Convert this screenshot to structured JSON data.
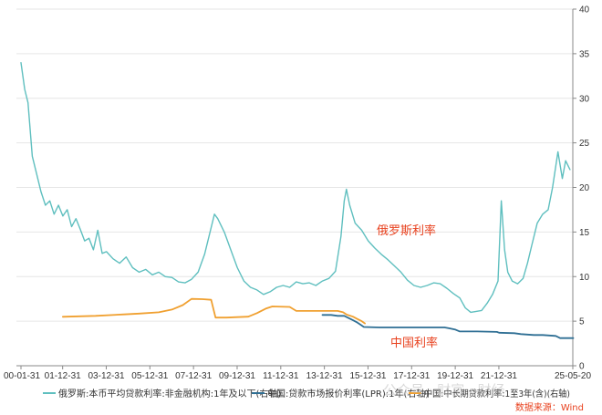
{
  "chart_data": {
    "type": "line",
    "y_axis_side": "right",
    "ylim": [
      0,
      40
    ],
    "y_ticks": [
      "0",
      "5",
      "10",
      "15",
      "20",
      "25",
      "30",
      "35",
      "40"
    ],
    "x_ticks": [
      "00-01-31",
      "01-12-31",
      "03-12-31",
      "05-12-31",
      "07-12-31",
      "09-12-31",
      "11-12-31",
      "13-12-31",
      "15-12-31",
      "17-12-31",
      "19-12-31",
      "21-12-31",
      "25-05-20"
    ],
    "legend_position": "bottom",
    "series": [
      {
        "name": "俄罗斯:本币平均贷款利率:非金融机构:1年及以下(右轴)",
        "color": "#5fbfbf",
        "annotation": "俄罗斯利率",
        "points": [
          [
            2000.08,
            34.0
          ],
          [
            2000.25,
            31.0
          ],
          [
            2000.4,
            29.5
          ],
          [
            2000.6,
            23.5
          ],
          [
            2000.8,
            21.5
          ],
          [
            2001.0,
            19.5
          ],
          [
            2001.2,
            18.0
          ],
          [
            2001.4,
            18.5
          ],
          [
            2001.6,
            17.0
          ],
          [
            2001.8,
            18.0
          ],
          [
            2002.0,
            16.8
          ],
          [
            2002.2,
            17.5
          ],
          [
            2002.4,
            15.6
          ],
          [
            2002.6,
            16.5
          ],
          [
            2002.8,
            15.3
          ],
          [
            2003.0,
            14.0
          ],
          [
            2003.2,
            14.3
          ],
          [
            2003.4,
            13.0
          ],
          [
            2003.6,
            15.2
          ],
          [
            2003.8,
            12.6
          ],
          [
            2004.0,
            12.8
          ],
          [
            2004.3,
            12.0
          ],
          [
            2004.6,
            11.5
          ],
          [
            2004.9,
            12.2
          ],
          [
            2005.2,
            11.0
          ],
          [
            2005.5,
            10.5
          ],
          [
            2005.8,
            10.8
          ],
          [
            2006.1,
            10.2
          ],
          [
            2006.4,
            10.5
          ],
          [
            2006.7,
            10.0
          ],
          [
            2007.0,
            9.9
          ],
          [
            2007.3,
            9.4
          ],
          [
            2007.6,
            9.3
          ],
          [
            2007.9,
            9.7
          ],
          [
            2008.2,
            10.5
          ],
          [
            2008.5,
            12.5
          ],
          [
            2008.8,
            15.5
          ],
          [
            2008.95,
            17.0
          ],
          [
            2009.1,
            16.5
          ],
          [
            2009.4,
            15.0
          ],
          [
            2009.7,
            13.0
          ],
          [
            2010.0,
            11.0
          ],
          [
            2010.3,
            9.5
          ],
          [
            2010.6,
            8.8
          ],
          [
            2010.9,
            8.5
          ],
          [
            2011.2,
            8.0
          ],
          [
            2011.5,
            8.3
          ],
          [
            2011.8,
            8.8
          ],
          [
            2012.1,
            9.0
          ],
          [
            2012.4,
            8.8
          ],
          [
            2012.7,
            9.4
          ],
          [
            2013.0,
            9.2
          ],
          [
            2013.3,
            9.3
          ],
          [
            2013.6,
            9.0
          ],
          [
            2013.9,
            9.5
          ],
          [
            2014.2,
            9.8
          ],
          [
            2014.5,
            10.6
          ],
          [
            2014.75,
            14.5
          ],
          [
            2014.9,
            18.5
          ],
          [
            2015.0,
            19.8
          ],
          [
            2015.15,
            18.0
          ],
          [
            2015.4,
            16.0
          ],
          [
            2015.7,
            15.2
          ],
          [
            2016.0,
            14.0
          ],
          [
            2016.3,
            13.2
          ],
          [
            2016.6,
            12.5
          ],
          [
            2016.9,
            11.9
          ],
          [
            2017.2,
            11.2
          ],
          [
            2017.5,
            10.5
          ],
          [
            2017.8,
            9.6
          ],
          [
            2018.1,
            9.0
          ],
          [
            2018.4,
            8.8
          ],
          [
            2018.7,
            9.0
          ],
          [
            2019.0,
            9.3
          ],
          [
            2019.3,
            9.2
          ],
          [
            2019.6,
            8.7
          ],
          [
            2019.9,
            8.1
          ],
          [
            2020.2,
            7.6
          ],
          [
            2020.45,
            6.5
          ],
          [
            2020.7,
            6.0
          ],
          [
            2020.95,
            6.1
          ],
          [
            2021.2,
            6.2
          ],
          [
            2021.45,
            7.0
          ],
          [
            2021.7,
            8.0
          ],
          [
            2021.95,
            9.5
          ],
          [
            2022.1,
            18.5
          ],
          [
            2022.25,
            13.0
          ],
          [
            2022.4,
            10.5
          ],
          [
            2022.6,
            9.5
          ],
          [
            2022.85,
            9.2
          ],
          [
            2023.1,
            9.8
          ],
          [
            2023.3,
            11.5
          ],
          [
            2023.5,
            13.5
          ],
          [
            2023.75,
            16.0
          ],
          [
            2024.0,
            17.0
          ],
          [
            2024.25,
            17.5
          ],
          [
            2024.45,
            20.0
          ],
          [
            2024.7,
            24.0
          ],
          [
            2024.9,
            21.0
          ],
          [
            2025.05,
            23.0
          ],
          [
            2025.25,
            22.0
          ]
        ]
      },
      {
        "name": "中国:贷款市场报价利率(LPR):1年(右轴)",
        "color": "#2f6f94",
        "annotation": "中国利率",
        "points": [
          [
            2013.9,
            5.7
          ],
          [
            2014.3,
            5.7
          ],
          [
            2014.6,
            5.6
          ],
          [
            2014.9,
            5.6
          ],
          [
            2015.1,
            5.35
          ],
          [
            2015.3,
            5.1
          ],
          [
            2015.5,
            4.85
          ],
          [
            2015.65,
            4.6
          ],
          [
            2015.8,
            4.35
          ],
          [
            2016.5,
            4.3
          ],
          [
            2018.0,
            4.3
          ],
          [
            2019.5,
            4.3
          ],
          [
            2019.7,
            4.2
          ],
          [
            2020.0,
            4.05
          ],
          [
            2020.2,
            3.85
          ],
          [
            2021.0,
            3.85
          ],
          [
            2021.9,
            3.8
          ],
          [
            2022.0,
            3.7
          ],
          [
            2022.7,
            3.65
          ],
          [
            2023.0,
            3.55
          ],
          [
            2023.6,
            3.45
          ],
          [
            2024.0,
            3.45
          ],
          [
            2024.6,
            3.35
          ],
          [
            2024.8,
            3.1
          ],
          [
            2025.4,
            3.1
          ]
        ]
      },
      {
        "name": "中国:中长期贷款利率:1至3年(含)(右轴)",
        "color": "#f0a030",
        "points": [
          [
            2002.0,
            5.49
          ],
          [
            2003.5,
            5.6
          ],
          [
            2004.8,
            5.76
          ],
          [
            2005.5,
            5.85
          ],
          [
            2006.4,
            6.0
          ],
          [
            2007.0,
            6.3
          ],
          [
            2007.5,
            6.8
          ],
          [
            2007.9,
            7.5
          ],
          [
            2008.4,
            7.47
          ],
          [
            2008.8,
            7.4
          ],
          [
            2009.0,
            5.4
          ],
          [
            2009.5,
            5.4
          ],
          [
            2010.5,
            5.5
          ],
          [
            2010.9,
            5.9
          ],
          [
            2011.3,
            6.4
          ],
          [
            2011.6,
            6.65
          ],
          [
            2012.4,
            6.6
          ],
          [
            2012.7,
            6.15
          ],
          [
            2013.5,
            6.15
          ],
          [
            2014.6,
            6.15
          ],
          [
            2014.85,
            6.0
          ],
          [
            2015.0,
            5.75
          ],
          [
            2015.3,
            5.5
          ],
          [
            2015.5,
            5.25
          ],
          [
            2015.7,
            5.0
          ],
          [
            2015.85,
            4.75
          ]
        ]
      }
    ]
  },
  "source_text": "数据来源：Wind",
  "watermark_text": "公众号 · 财富 · 财经"
}
